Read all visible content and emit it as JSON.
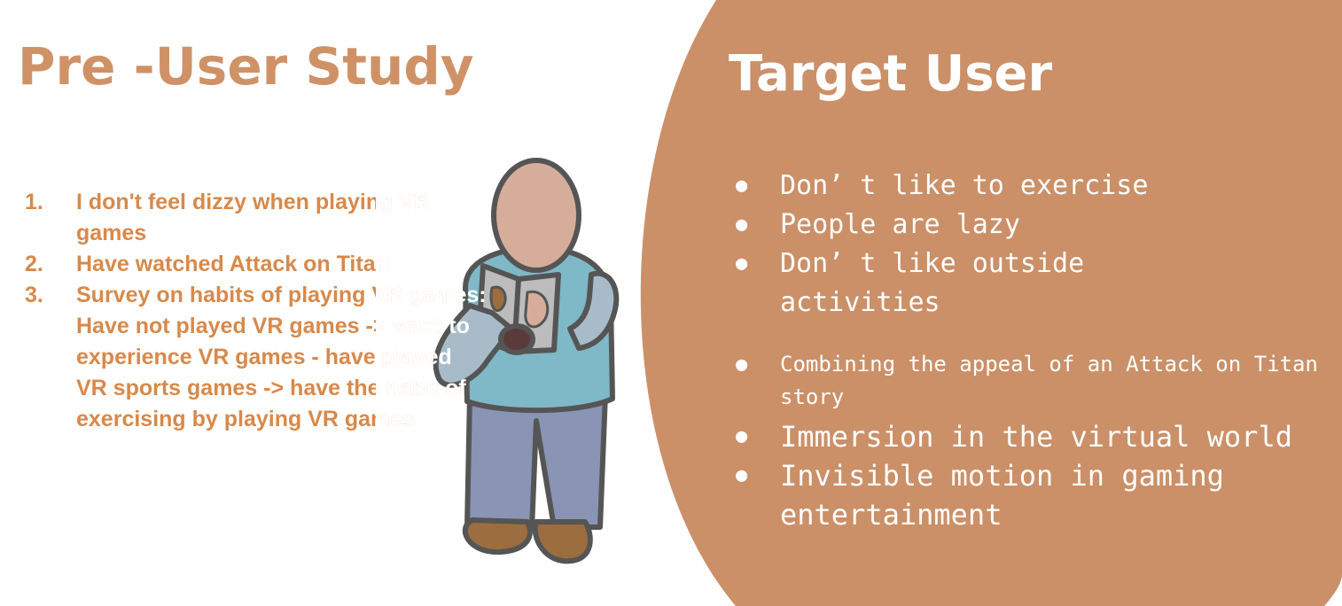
{
  "colors": {
    "accent_brown": "#cb9068",
    "title_brown": "#cf9267",
    "list_orange": "#d8894a",
    "white": "#ffffff",
    "figure_skin": "#d6ad9b",
    "figure_shirt": "#7fb8c6",
    "figure_pants": "#8a94b4",
    "figure_shoes": "#9c6d3e",
    "figure_outline": "#555555"
  },
  "left": {
    "title": "Pre -User Study",
    "items": [
      {
        "number": "1.",
        "lines": [
          "I don't feel dizzy when playing VR",
          "games"
        ]
      },
      {
        "number": "2.",
        "lines": [
          "Have watched Attack on Titan"
        ]
      },
      {
        "number": "3.",
        "lines": [
          "Survey on habits of playing VR games:",
          "Have not played VR games -> want to",
          "experience VR games - have played",
          "VR sports games -> have  the habit of",
          "exercising by playing VR games"
        ]
      }
    ]
  },
  "right": {
    "title": "Target User",
    "bullet_symbol": "●",
    "group_a": [
      {
        "lines": [
          "Don’ t like to exercise"
        ]
      },
      {
        "lines": [
          "People are lazy"
        ]
      },
      {
        "lines": [
          "Don’ t like outside",
          "activities"
        ]
      }
    ],
    "group_b": [
      {
        "lines": [
          "Combining the appeal of an Attack on Titan",
          "story"
        ]
      },
      {
        "lines": [
          "Immersion in the virtual world"
        ]
      },
      {
        "lines": [
          "Invisible motion in gaming",
          "entertainment"
        ]
      }
    ]
  },
  "icons": {
    "person": "person-holding-book-icon",
    "background": "brown-curved-panel"
  }
}
